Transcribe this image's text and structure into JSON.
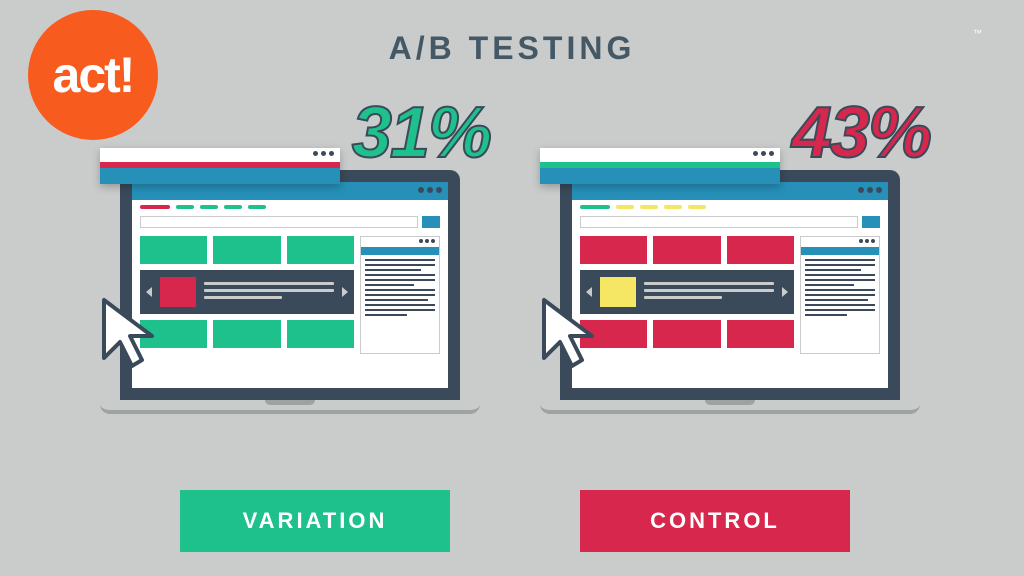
{
  "colors": {
    "bg": "#c9cccb",
    "orange": "#f75b1e",
    "title": "#445866",
    "green": "#1ec08b",
    "red": "#d7274c",
    "yellow": "#f5e663",
    "dark": "#3a4a5a",
    "teal": "#2690b8",
    "white": "#ffffff",
    "gray": "#9ca3a1"
  },
  "logo": {
    "text": "act!",
    "tm": "™"
  },
  "title": "A/B TESTING",
  "variation": {
    "percent": "31%",
    "percent_color": "#1ec08b",
    "label": "VARIATION",
    "label_bg": "#1ec08b",
    "tile_color": "#1ec08b",
    "hero_block_color": "#d7274c",
    "popup_accent": "#d7274c",
    "nav_segments": [
      "#d7274c",
      "#1ec08b",
      "#1ec08b",
      "#1ec08b",
      "#1ec08b"
    ]
  },
  "control": {
    "percent": "43%",
    "percent_color": "#d7274c",
    "label": "CONTROL",
    "label_bg": "#d7274c",
    "tile_color": "#d7274c",
    "hero_block_color": "#f5e663",
    "popup_accent": "#1ec08b",
    "nav_segments": [
      "#1ec08b",
      "#f5e663",
      "#f5e663",
      "#f5e663",
      "#f5e663"
    ]
  }
}
